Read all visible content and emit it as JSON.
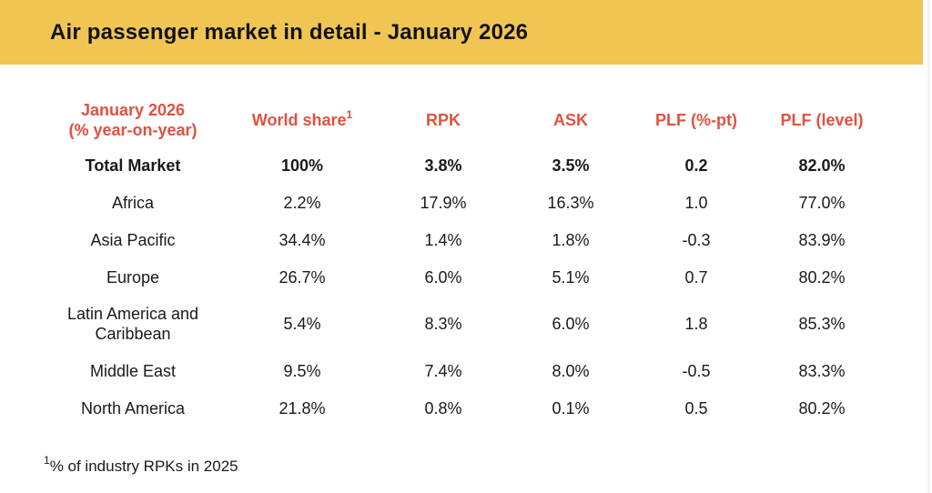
{
  "title_bar": {
    "title": "Air passenger market in detail - January 2026"
  },
  "colors": {
    "title_bar_bg": "#F1C552",
    "header_text": "#E0523F",
    "body_text": "#1A1A1A"
  },
  "table": {
    "header": {
      "region_line1": "January 2026",
      "region_line2": "(% year-on-year)",
      "world_share": "World share",
      "world_share_sup": "1",
      "rpk": "RPK",
      "ask": "ASK",
      "plf_pt": "PLF (%-pt)",
      "plf_level": "PLF (level)"
    },
    "rows": [
      {
        "region": "Total Market",
        "world_share": "100%",
        "rpk": "3.8%",
        "ask": "3.5%",
        "plf_pt": "0.2",
        "plf_level": "82.0%"
      },
      {
        "region": "Africa",
        "world_share": "2.2%",
        "rpk": "17.9%",
        "ask": "16.3%",
        "plf_pt": "1.0",
        "plf_level": "77.0%"
      },
      {
        "region": "Asia Pacific",
        "world_share": "34.4%",
        "rpk": "1.4%",
        "ask": "1.8%",
        "plf_pt": "-0.3",
        "plf_level": "83.9%"
      },
      {
        "region": "Europe",
        "world_share": "26.7%",
        "rpk": "6.0%",
        "ask": "5.1%",
        "plf_pt": "0.7",
        "plf_level": "80.2%"
      },
      {
        "region": "Latin America and Caribbean",
        "world_share": "5.4%",
        "rpk": "8.3%",
        "ask": "6.0%",
        "plf_pt": "1.8",
        "plf_level": "85.3%"
      },
      {
        "region": "Middle East",
        "world_share": "9.5%",
        "rpk": "7.4%",
        "ask": "8.0%",
        "plf_pt": "-0.5",
        "plf_level": "83.3%"
      },
      {
        "region": "North America",
        "world_share": "21.8%",
        "rpk": "0.8%",
        "ask": "0.1%",
        "plf_pt": "0.5",
        "plf_level": "80.2%"
      }
    ]
  },
  "footnote": {
    "sup": "1",
    "text": "% of industry RPKs in 2025"
  },
  "chart_data": {
    "type": "table",
    "title": "Air passenger market in detail - January 2026",
    "columns": [
      "January 2026 (% year-on-year)",
      "World share¹",
      "RPK",
      "ASK",
      "PLF (%-pt)",
      "PLF (level)"
    ],
    "rows": [
      [
        "Total Market",
        "100%",
        "3.8%",
        "3.5%",
        "0.2",
        "82.0%"
      ],
      [
        "Africa",
        "2.2%",
        "17.9%",
        "16.3%",
        "1.0",
        "77.0%"
      ],
      [
        "Asia Pacific",
        "34.4%",
        "1.4%",
        "1.8%",
        "-0.3",
        "83.9%"
      ],
      [
        "Europe",
        "26.7%",
        "6.0%",
        "5.1%",
        "0.7",
        "80.2%"
      ],
      [
        "Latin America and Caribbean",
        "5.4%",
        "8.3%",
        "6.0%",
        "1.8",
        "85.3%"
      ],
      [
        "Middle East",
        "9.5%",
        "7.4%",
        "8.0%",
        "-0.5",
        "83.3%"
      ],
      [
        "North America",
        "21.8%",
        "0.8%",
        "0.1%",
        "0.5",
        "80.2%"
      ]
    ],
    "footnote": "¹% of industry RPKs in 2025"
  }
}
